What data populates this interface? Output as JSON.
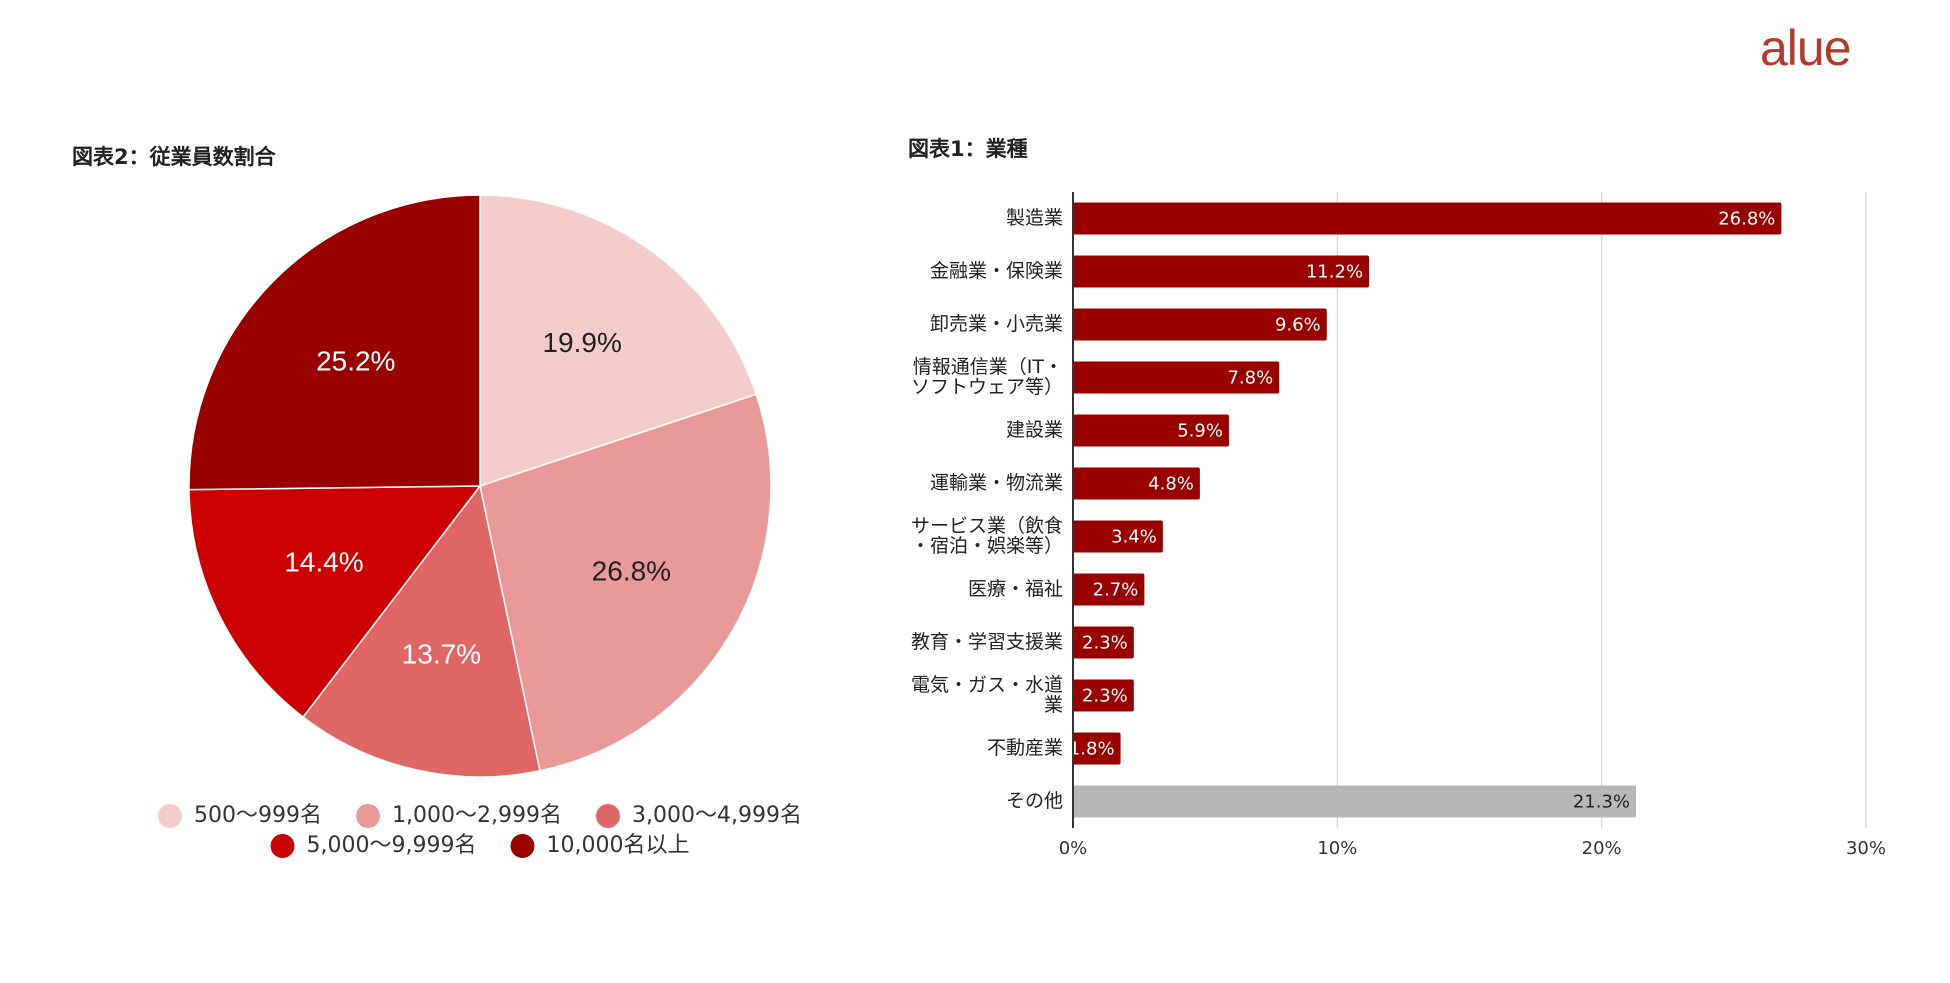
{
  "brand": {
    "logo_text": "alue",
    "logo_color": "#b03a2e"
  },
  "chart_data": [
    {
      "type": "pie",
      "title": "図表2：従業員数割合",
      "slices": [
        {
          "label": "500〜999名",
          "value": 19.9,
          "display": "19.9%",
          "color": "#f4cccc",
          "text_color": "#222222"
        },
        {
          "label": "1,000〜2,999名",
          "value": 26.8,
          "display": "26.8%",
          "color": "#ea9999",
          "text_color": "#222222"
        },
        {
          "label": "3,000〜4,999名",
          "value": 13.7,
          "display": "13.7%",
          "color": "#e06666",
          "text_color": "#ffffff"
        },
        {
          "label": "5,000〜9,999名",
          "value": 14.4,
          "display": "14.4%",
          "color": "#cc0000",
          "text_color": "#ffffff"
        },
        {
          "label": "10,000名以上",
          "value": 25.2,
          "display": "25.2%",
          "color": "#990000",
          "text_color": "#ffffff"
        }
      ],
      "legend_position": "bottom"
    },
    {
      "type": "bar",
      "orientation": "horizontal",
      "title": "図表1：業種",
      "categories": [
        [
          "製造業"
        ],
        [
          "金融業・保険業"
        ],
        [
          "卸売業・小売業"
        ],
        [
          "情報通信業（IT・",
          "ソフトウェア等）"
        ],
        [
          "建設業"
        ],
        [
          "運輸業・物流業"
        ],
        [
          "サービス業（飲食",
          "・宿泊・娯楽等）"
        ],
        [
          "医療・福祉"
        ],
        [
          "教育・学習支援業"
        ],
        [
          "電気・ガス・水道",
          "業"
        ],
        [
          "不動産業"
        ],
        [
          "その他"
        ]
      ],
      "values": [
        26.8,
        11.2,
        9.6,
        7.8,
        5.9,
        4.8,
        3.4,
        2.7,
        2.3,
        2.3,
        1.8,
        21.3
      ],
      "data_labels": [
        "26.8%",
        "11.2%",
        "9.6%",
        "7.8%",
        "5.9%",
        "4.8%",
        "3.4%",
        "2.7%",
        "2.3%",
        "2.3%",
        "1.8%",
        "21.3%"
      ],
      "bar_colors": [
        "#990000",
        "#990000",
        "#990000",
        "#990000",
        "#990000",
        "#990000",
        "#990000",
        "#990000",
        "#990000",
        "#990000",
        "#990000",
        "#b7b7b7"
      ],
      "label_colors": [
        "#ffffff",
        "#ffffff",
        "#ffffff",
        "#ffffff",
        "#ffffff",
        "#ffffff",
        "#ffffff",
        "#ffffff",
        "#ffffff",
        "#ffffff",
        "#ffffff",
        "#222222"
      ],
      "xlim": [
        0,
        30
      ],
      "x_ticks": [
        0,
        10,
        20,
        30
      ],
      "x_tick_labels": [
        "0%",
        "10%",
        "20%",
        "30%"
      ],
      "grid": true
    }
  ]
}
